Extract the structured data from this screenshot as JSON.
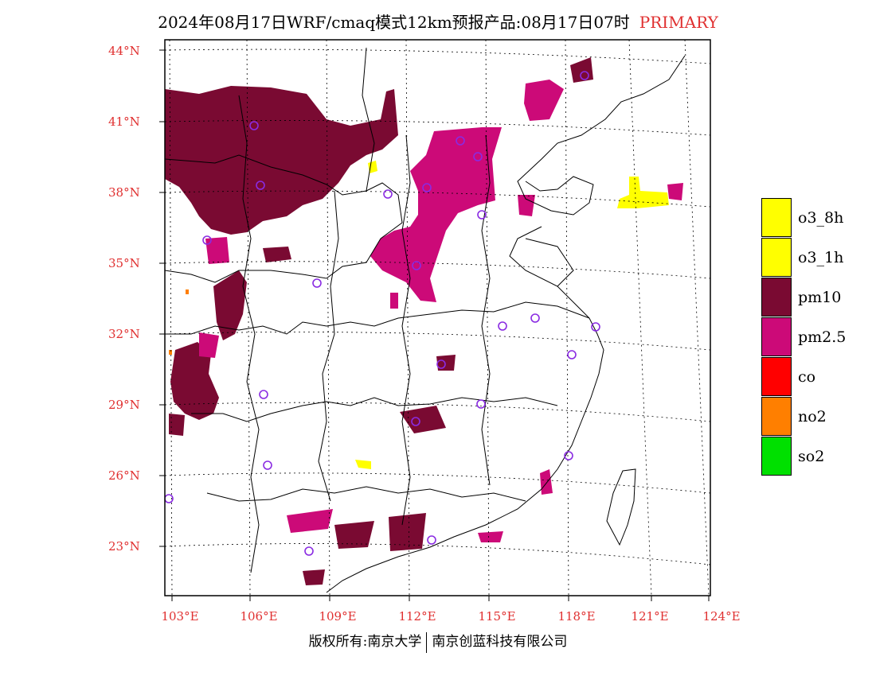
{
  "header": {
    "title": "2024年08月17日WRF/cmaq模式12km预报产品:08月17日07时",
    "tag": "PRIMARY"
  },
  "axes": {
    "lat_labels": [
      "44°N",
      "41°N",
      "38°N",
      "35°N",
      "32°N",
      "29°N",
      "26°N",
      "23°N"
    ],
    "lon_labels": [
      "103°E",
      "106°E",
      "109°E",
      "112°E",
      "115°E",
      "118°E",
      "121°E",
      "124°E"
    ]
  },
  "legend": {
    "items": [
      {
        "label": "o3_8h",
        "color": "#ffff00"
      },
      {
        "label": "o3_1h",
        "color": "#ffff00"
      },
      {
        "label": "pm10",
        "color": "#7a0a32"
      },
      {
        "label": "pm2.5",
        "color": "#cc0a78"
      },
      {
        "label": "co",
        "color": "#ff0000"
      },
      {
        "label": "no2",
        "color": "#ff7f00"
      },
      {
        "label": "so2",
        "color": "#00e000"
      }
    ]
  },
  "colors": {
    "pm10": "#7a0a32",
    "pm25": "#cc0a78",
    "o3": "#ffff00",
    "no2": "#ff7f00",
    "station": "#8a2be2",
    "axis_label": "#e03030"
  },
  "footer": {
    "left": "版权所有:南京大学",
    "right": "南京创蓝科技有限公司"
  }
}
